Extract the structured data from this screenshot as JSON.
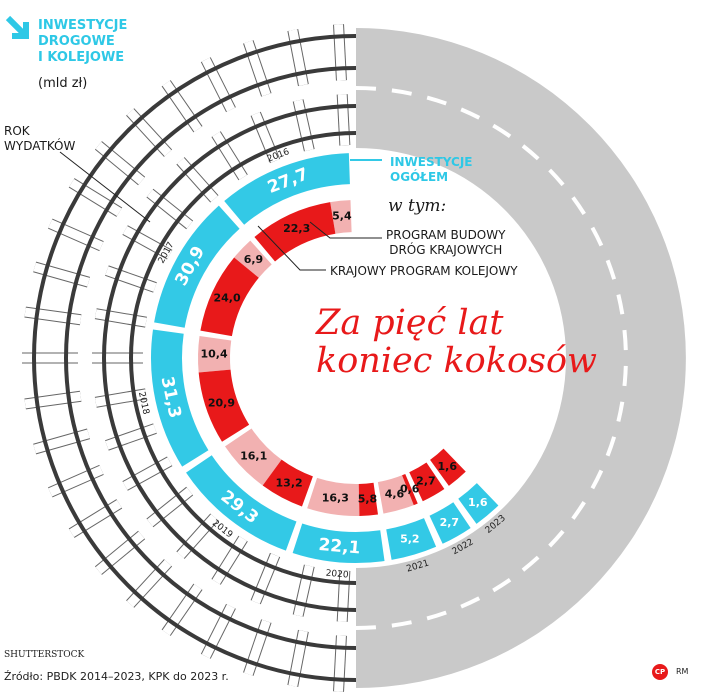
{
  "header": {
    "title_lines": [
      "INWESTYCJE",
      "DROGOWE",
      "I KOLEJOWE"
    ],
    "unit": "(mld zł)"
  },
  "labels": {
    "rok_wydatkow": [
      "ROK",
      "WYDATKÓW"
    ],
    "inwestycje_ogolem": [
      "INWESTYCJE",
      "OGÓŁEM"
    ],
    "w_tym": "w tym:",
    "program_budowy": [
      "PROGRAM BUDOWY",
      "DRÓG KRAJOWYCH"
    ],
    "krajowy_program": "KRAJOWY PROGRAM KOLEJOWY"
  },
  "headline": [
    "Za pięć lat",
    "koniec kokosów"
  ],
  "footer": {
    "credit": "SHUTTERSTOCK",
    "source": "Źródło: PBDK 2014–2023, KPK do 2023 r.",
    "logo": "CP",
    "author": "RM"
  },
  "colors": {
    "total": "#33c9e6",
    "roads": "#e8191a",
    "rail": "#f2b1b1",
    "asphalt": "#c9c9c9",
    "title": "#e8191a"
  },
  "chart_data": {
    "type": "bar",
    "layout": "radial",
    "categories": [
      "2016",
      "2017",
      "2018",
      "2019",
      "2020",
      "2021",
      "2022",
      "2023"
    ],
    "series": [
      {
        "name": "INWESTYCJE OGÓŁEM",
        "values": [
          27.7,
          30.9,
          31.3,
          29.3,
          22.1,
          5.2,
          2.7,
          1.6
        ]
      },
      {
        "name": "PROGRAM BUDOWY DRÓG KRAJOWYCH",
        "values": [
          22.3,
          24.0,
          20.9,
          13.2,
          5.8,
          0.6,
          2.7,
          1.6
        ]
      },
      {
        "name": "KRAJOWY PROGRAM KOLEJOWY",
        "values": [
          5.4,
          6.9,
          10.4,
          16.1,
          16.3,
          4.6,
          null,
          null
        ]
      }
    ],
    "value_labels": {
      "total": [
        "27,7",
        "30,9",
        "31,3",
        "29,3",
        "22,1",
        "5,2",
        "2,7",
        "1,6"
      ],
      "roads": [
        "22,3",
        "24,0",
        "20,9",
        "13,2",
        "5,8",
        "0,6",
        "2,7",
        "1,6"
      ],
      "rail": [
        "5,4",
        "6,9",
        "10,4",
        "16,1",
        "16,3",
        "4,6",
        "",
        ""
      ]
    }
  }
}
